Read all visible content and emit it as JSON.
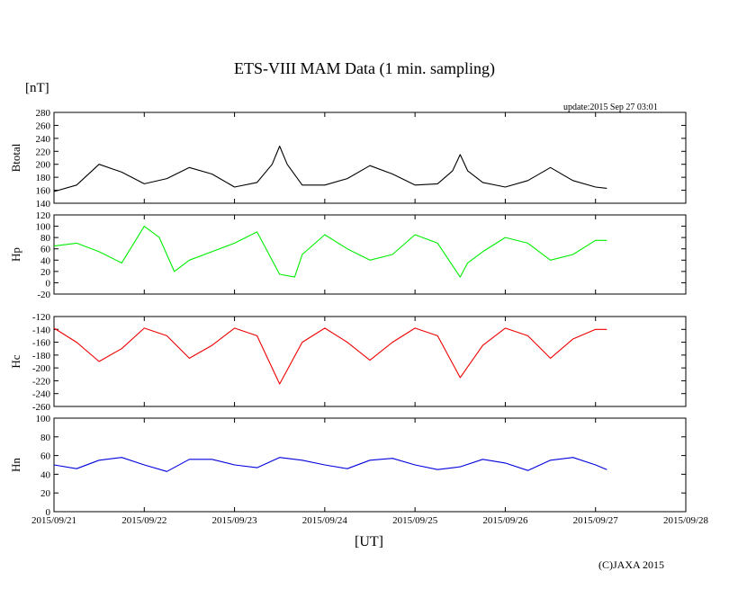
{
  "header": {
    "title": "ETS-VIII MAM Data (1 min. sampling)",
    "unit": "[nT]",
    "update": "update:2015 Sep 27 03:01"
  },
  "footer": {
    "xlabel": "[UT]",
    "copyright": "(C)JAXA 2015"
  },
  "chart_data": [
    {
      "type": "line",
      "ylabel": "Btotal",
      "color": "#000000",
      "ylim": [
        140,
        280
      ],
      "yticks": [
        140,
        160,
        180,
        200,
        220,
        240,
        260,
        280
      ],
      "xlim": [
        "2015-09-21T00:00",
        "2015-09-28T00:00"
      ],
      "x": [
        "2015-09-21T00:00",
        "2015-09-21T06:00",
        "2015-09-21T12:00",
        "2015-09-21T18:00",
        "2015-09-22T00:00",
        "2015-09-22T06:00",
        "2015-09-22T12:00",
        "2015-09-22T18:00",
        "2015-09-23T00:00",
        "2015-09-23T06:00",
        "2015-09-23T10:00",
        "2015-09-23T12:00",
        "2015-09-23T14:00",
        "2015-09-23T18:00",
        "2015-09-24T00:00",
        "2015-09-24T06:00",
        "2015-09-24T12:00",
        "2015-09-24T18:00",
        "2015-09-25T00:00",
        "2015-09-25T06:00",
        "2015-09-25T10:00",
        "2015-09-25T12:00",
        "2015-09-25T14:00",
        "2015-09-25T18:00",
        "2015-09-26T00:00",
        "2015-09-26T06:00",
        "2015-09-26T12:00",
        "2015-09-26T18:00",
        "2015-09-27T00:00",
        "2015-09-27T03:00"
      ],
      "values": [
        158,
        168,
        200,
        188,
        170,
        178,
        195,
        185,
        165,
        172,
        200,
        228,
        200,
        168,
        168,
        178,
        198,
        185,
        168,
        170,
        190,
        215,
        190,
        172,
        165,
        175,
        195,
        175,
        165,
        163
      ]
    },
    {
      "type": "line",
      "ylabel": "Hp",
      "color": "#00ee00",
      "ylim": [
        -20,
        120
      ],
      "yticks": [
        -20,
        0,
        20,
        40,
        60,
        80,
        100,
        120
      ],
      "xlim": [
        "2015-09-21T00:00",
        "2015-09-28T00:00"
      ],
      "x": [
        "2015-09-21T00:00",
        "2015-09-21T06:00",
        "2015-09-21T12:00",
        "2015-09-21T18:00",
        "2015-09-22T00:00",
        "2015-09-22T04:00",
        "2015-09-22T08:00",
        "2015-09-22T12:00",
        "2015-09-22T18:00",
        "2015-09-23T00:00",
        "2015-09-23T06:00",
        "2015-09-23T12:00",
        "2015-09-23T16:00",
        "2015-09-23T18:00",
        "2015-09-24T00:00",
        "2015-09-24T06:00",
        "2015-09-24T12:00",
        "2015-09-24T18:00",
        "2015-09-25T00:00",
        "2015-09-25T06:00",
        "2015-09-25T12:00",
        "2015-09-25T14:00",
        "2015-09-25T18:00",
        "2015-09-26T00:00",
        "2015-09-26T06:00",
        "2015-09-26T12:00",
        "2015-09-26T18:00",
        "2015-09-27T00:00",
        "2015-09-27T03:00"
      ],
      "values": [
        65,
        70,
        55,
        35,
        100,
        80,
        20,
        40,
        55,
        70,
        90,
        15,
        10,
        50,
        85,
        60,
        40,
        50,
        85,
        70,
        10,
        35,
        55,
        80,
        70,
        40,
        50,
        75,
        75
      ]
    },
    {
      "type": "line",
      "ylabel": "Hc",
      "color": "#ee0000",
      "ylim": [
        -260,
        -120
      ],
      "yticks": [
        -260,
        -240,
        -220,
        -200,
        -180,
        -160,
        -140,
        -120
      ],
      "xlim": [
        "2015-09-21T00:00",
        "2015-09-28T00:00"
      ],
      "x": [
        "2015-09-21T00:00",
        "2015-09-21T06:00",
        "2015-09-21T12:00",
        "2015-09-21T18:00",
        "2015-09-22T00:00",
        "2015-09-22T06:00",
        "2015-09-22T12:00",
        "2015-09-22T18:00",
        "2015-09-23T00:00",
        "2015-09-23T06:00",
        "2015-09-23T12:00",
        "2015-09-23T18:00",
        "2015-09-24T00:00",
        "2015-09-24T06:00",
        "2015-09-24T12:00",
        "2015-09-24T18:00",
        "2015-09-25T00:00",
        "2015-09-25T06:00",
        "2015-09-25T12:00",
        "2015-09-25T18:00",
        "2015-09-26T00:00",
        "2015-09-26T06:00",
        "2015-09-26T12:00",
        "2015-09-26T18:00",
        "2015-09-27T00:00",
        "2015-09-27T03:00"
      ],
      "values": [
        -138,
        -160,
        -190,
        -170,
        -138,
        -150,
        -185,
        -165,
        -138,
        -150,
        -225,
        -160,
        -138,
        -160,
        -188,
        -160,
        -138,
        -150,
        -215,
        -165,
        -138,
        -150,
        -185,
        -155,
        -140,
        -140
      ]
    },
    {
      "type": "line",
      "ylabel": "Hn",
      "color": "#0000dd",
      "ylim": [
        0,
        100
      ],
      "yticks": [
        0,
        20,
        40,
        60,
        80,
        100
      ],
      "xticks": [
        "2015/09/21",
        "2015/09/22",
        "2015/09/23",
        "2015/09/24",
        "2015/09/25",
        "2015/09/26",
        "2015/09/27",
        "2015/09/28"
      ],
      "xlim": [
        "2015-09-21T00:00",
        "2015-09-28T00:00"
      ],
      "x": [
        "2015-09-21T00:00",
        "2015-09-21T06:00",
        "2015-09-21T12:00",
        "2015-09-21T18:00",
        "2015-09-22T00:00",
        "2015-09-22T06:00",
        "2015-09-22T12:00",
        "2015-09-22T18:00",
        "2015-09-23T00:00",
        "2015-09-23T06:00",
        "2015-09-23T12:00",
        "2015-09-23T18:00",
        "2015-09-24T00:00",
        "2015-09-24T06:00",
        "2015-09-24T12:00",
        "2015-09-24T18:00",
        "2015-09-25T00:00",
        "2015-09-25T06:00",
        "2015-09-25T12:00",
        "2015-09-25T18:00",
        "2015-09-26T00:00",
        "2015-09-26T06:00",
        "2015-09-26T12:00",
        "2015-09-26T18:00",
        "2015-09-27T00:00",
        "2015-09-27T03:00"
      ],
      "values": [
        50,
        46,
        55,
        58,
        50,
        43,
        56,
        56,
        50,
        47,
        58,
        55,
        50,
        46,
        55,
        57,
        50,
        45,
        48,
        56,
        52,
        44,
        55,
        58,
        50,
        45
      ]
    }
  ]
}
